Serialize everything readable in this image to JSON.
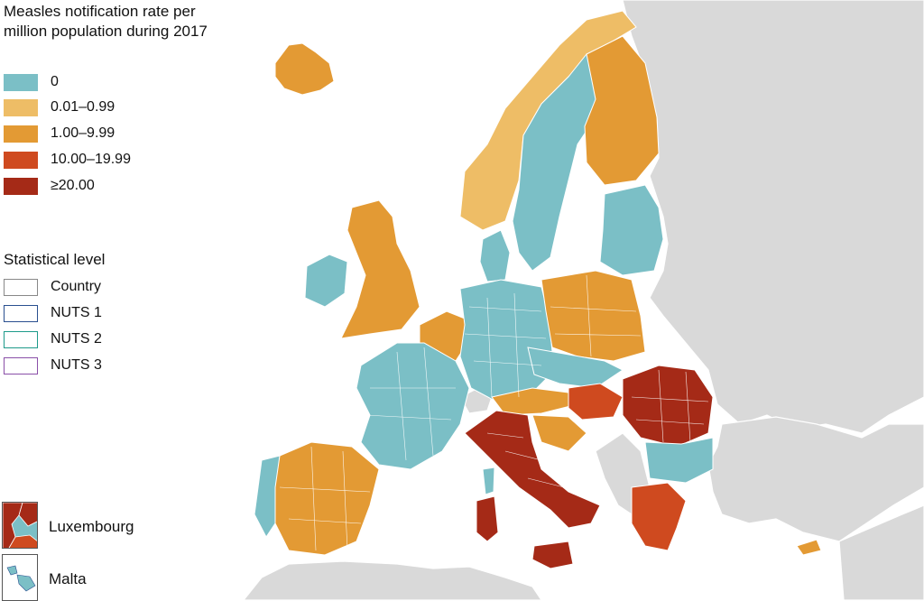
{
  "legend": {
    "title": "Measles notification rate per million population during 2017",
    "classes": [
      {
        "label": "0",
        "color": "#7bbfc6"
      },
      {
        "label": "0.01–0.99",
        "color": "#eebd66"
      },
      {
        "label": "1.00–9.99",
        "color": "#e39a34"
      },
      {
        "label": "10.00–19.99",
        "color": "#cf4a1f"
      },
      {
        "label": "≥20.00",
        "color": "#a52a17"
      }
    ]
  },
  "levels": {
    "title": "Statistical level",
    "items": [
      {
        "label": "Country",
        "color": "#888888"
      },
      {
        "label": "NUTS 1",
        "color": "#2a4f8f"
      },
      {
        "label": "NUTS 2",
        "color": "#1e9a8a"
      },
      {
        "label": "NUTS 3",
        "color": "#8a4fa8"
      }
    ]
  },
  "insets": [
    {
      "label": "Luxembourg"
    },
    {
      "label": "Malta"
    }
  ],
  "map": {
    "no_data_color": "#d9d9d9",
    "sea_color": "#ffffff"
  }
}
